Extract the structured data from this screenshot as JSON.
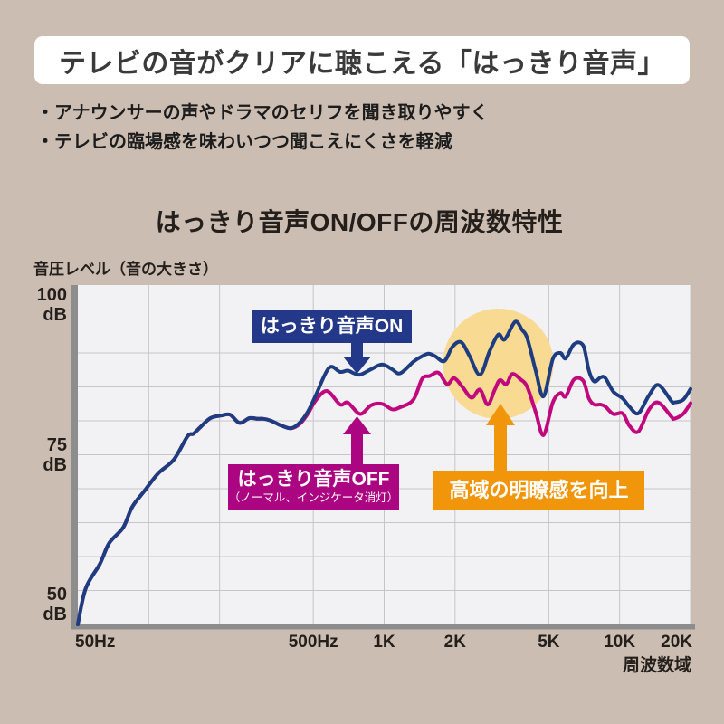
{
  "colors": {
    "page_bg": "#cbbdb2",
    "header_bg": "#ffffff",
    "header_text": "#3a3a3a",
    "body_text": "#1c1c1c",
    "plot_bg": "#f2f1f3",
    "grid": "#c6c5c8",
    "axis_bar": "#8d8d8d"
  },
  "header": {
    "title": "テレビの音がクリアに聴こえる「はっきり音声」"
  },
  "bullets": {
    "items": [
      "・アナウンサーの声やドラマのセリフを聞き取りやすく",
      "・テレビの臨場感を味わいつつ聞こえにくさを軽減"
    ]
  },
  "chart": {
    "title": "はっきり音声ON/OFFの周波数特性",
    "y_axis_title": "音圧レベル（音の大きさ）",
    "x_axis_title": "周波数域"
  },
  "annotations": {
    "on_label": {
      "text": "はっきり音声ON",
      "bg": "#24388a"
    },
    "off_label": {
      "line1": "はっきり音声OFF",
      "line2": "（ノーマル、インジケータ消灯）",
      "bg": "#ab0581"
    },
    "highlight_label": {
      "text": "高域の明瞭感を向上",
      "bg": "#f1950b"
    }
  },
  "chart_data": {
    "type": "line",
    "title": "はっきり音声ON/OFFの周波数特性",
    "xlabel": "周波数域",
    "ylabel": "音圧レベル（音の大きさ）",
    "x_scale": "log",
    "x_unit": "Hz",
    "y_unit": "dB",
    "x_range": [
      50,
      20000
    ],
    "y_range": [
      50,
      100
    ],
    "grid": true,
    "x_ticks": [
      {
        "hz": 50,
        "label": "50Hz",
        "align": "left"
      },
      {
        "hz": 500,
        "label": "500Hz",
        "align": "center"
      },
      {
        "hz": 1000,
        "label": "1K",
        "align": "center"
      },
      {
        "hz": 2000,
        "label": "2K",
        "align": "center"
      },
      {
        "hz": 5000,
        "label": "5K",
        "align": "center"
      },
      {
        "hz": 10000,
        "label": "10K",
        "align": "center"
      },
      {
        "hz": 20000,
        "label": "20K",
        "align": "right"
      }
    ],
    "y_ticks": [
      {
        "db": 100,
        "lines": [
          "100",
          "dB"
        ],
        "anchor": "top"
      },
      {
        "db": 75,
        "lines": [
          "75",
          "dB"
        ],
        "anchor": "middle"
      },
      {
        "db": 50,
        "lines": [
          "50",
          "dB"
        ],
        "anchor": "bottom"
      }
    ],
    "grid_x_hz": [
      100,
      200,
      500,
      1000,
      2000,
      5000,
      10000,
      20000
    ],
    "grid_y_db": [
      95,
      90,
      85,
      80,
      75,
      70,
      65,
      60,
      55
    ],
    "highlight_circle": {
      "center_hz": 3050,
      "center_db": 88.4,
      "radius_px": 61,
      "color": "#f8da92"
    },
    "series": [
      {
        "name": "はっきり音声OFF（ノーマル、インジケータ消灯）",
        "color": "#c1077d",
        "stroke_width": 4,
        "points": [
          [
            50,
            50
          ],
          [
            54,
            55.3
          ],
          [
            62,
            58.9
          ],
          [
            68,
            62
          ],
          [
            78,
            64.3
          ],
          [
            85,
            67.3
          ],
          [
            96,
            69.7
          ],
          [
            110,
            72.3
          ],
          [
            128,
            74.3
          ],
          [
            146,
            77.7
          ],
          [
            155,
            78.1
          ],
          [
            165,
            79
          ],
          [
            183,
            80.4
          ],
          [
            205,
            80.8
          ],
          [
            222,
            80.9
          ],
          [
            243,
            79.7
          ],
          [
            268,
            80.4
          ],
          [
            290,
            80.3
          ],
          [
            307,
            80.3
          ],
          [
            331,
            80
          ],
          [
            366,
            79.3
          ],
          [
            403,
            78.9
          ],
          [
            440,
            79.6
          ],
          [
            475,
            81.1
          ],
          [
            510,
            82.9
          ],
          [
            570,
            84.4
          ],
          [
            650,
            82.4
          ],
          [
            700,
            82.7
          ],
          [
            790,
            81
          ],
          [
            880,
            82.3
          ],
          [
            980,
            82.5
          ],
          [
            1080,
            81.7
          ],
          [
            1170,
            82
          ],
          [
            1330,
            83.1
          ],
          [
            1450,
            86.2
          ],
          [
            1560,
            86.6
          ],
          [
            1700,
            87.1
          ],
          [
            1850,
            85.4
          ],
          [
            1980,
            86.3
          ],
          [
            2150,
            85
          ],
          [
            2350,
            83.4
          ],
          [
            2550,
            84.6
          ],
          [
            2750,
            82.4
          ],
          [
            2950,
            84.6
          ],
          [
            3100,
            86
          ],
          [
            3300,
            85.4
          ],
          [
            3500,
            86.9
          ],
          [
            3800,
            86.1
          ],
          [
            4050,
            85
          ],
          [
            4400,
            81.3
          ],
          [
            4750,
            77.9
          ],
          [
            5200,
            82.7
          ],
          [
            5600,
            84.1
          ],
          [
            5900,
            83.6
          ],
          [
            6400,
            86.1
          ],
          [
            7000,
            85.9
          ],
          [
            7400,
            83.3
          ],
          [
            7800,
            82.4
          ],
          [
            8300,
            82.4
          ],
          [
            8700,
            82.1
          ],
          [
            9400,
            81
          ],
          [
            10300,
            81.1
          ],
          [
            11000,
            79.3
          ],
          [
            12000,
            78.4
          ],
          [
            13300,
            81.6
          ],
          [
            14600,
            82.7
          ],
          [
            16600,
            80.6
          ],
          [
            17000,
            80.3
          ],
          [
            18600,
            81
          ],
          [
            20000,
            82.6
          ]
        ]
      },
      {
        "name": "はっきり音声ON",
        "color": "#1e3c80",
        "stroke_width": 4,
        "points": [
          [
            50,
            50
          ],
          [
            54,
            55.3
          ],
          [
            62,
            58.9
          ],
          [
            68,
            62
          ],
          [
            78,
            64.3
          ],
          [
            85,
            67.3
          ],
          [
            96,
            69.7
          ],
          [
            110,
            72.3
          ],
          [
            128,
            74.3
          ],
          [
            146,
            77.7
          ],
          [
            155,
            78.1
          ],
          [
            165,
            79
          ],
          [
            183,
            80.4
          ],
          [
            205,
            80.8
          ],
          [
            222,
            80.9
          ],
          [
            243,
            79.7
          ],
          [
            268,
            80.4
          ],
          [
            290,
            80.3
          ],
          [
            307,
            80.3
          ],
          [
            331,
            80
          ],
          [
            366,
            79.3
          ],
          [
            403,
            78.9
          ],
          [
            440,
            79.8
          ],
          [
            475,
            81.4
          ],
          [
            510,
            83.6
          ],
          [
            583,
            87.8
          ],
          [
            650,
            87.2
          ],
          [
            700,
            87.4
          ],
          [
            745,
            87
          ],
          [
            790,
            86.8
          ],
          [
            880,
            87.6
          ],
          [
            980,
            88.3
          ],
          [
            1080,
            87.6
          ],
          [
            1170,
            87
          ],
          [
            1330,
            88.7
          ],
          [
            1430,
            89.4
          ],
          [
            1540,
            89.9
          ],
          [
            1650,
            89.5
          ],
          [
            1800,
            88.8
          ],
          [
            1950,
            90.9
          ],
          [
            2120,
            91.6
          ],
          [
            2300,
            89.6
          ],
          [
            2550,
            86.8
          ],
          [
            2800,
            90.2
          ],
          [
            3050,
            92.7
          ],
          [
            3250,
            92
          ],
          [
            3600,
            94.6
          ],
          [
            3850,
            93.4
          ],
          [
            4050,
            92.2
          ],
          [
            4400,
            87.4
          ],
          [
            4750,
            83.6
          ],
          [
            5200,
            89.1
          ],
          [
            5600,
            90
          ],
          [
            5900,
            89.2
          ],
          [
            6400,
            91.3
          ],
          [
            7000,
            91.1
          ],
          [
            7400,
            87.4
          ],
          [
            7800,
            85.8
          ],
          [
            8300,
            86.4
          ],
          [
            8700,
            86.3
          ],
          [
            9400,
            84.3
          ],
          [
            10300,
            83.3
          ],
          [
            11000,
            82.1
          ],
          [
            12000,
            81.1
          ],
          [
            13300,
            83.7
          ],
          [
            14600,
            85.3
          ],
          [
            16600,
            82.9
          ],
          [
            17000,
            82.7
          ],
          [
            18600,
            83.1
          ],
          [
            20000,
            84.7
          ]
        ]
      }
    ]
  }
}
